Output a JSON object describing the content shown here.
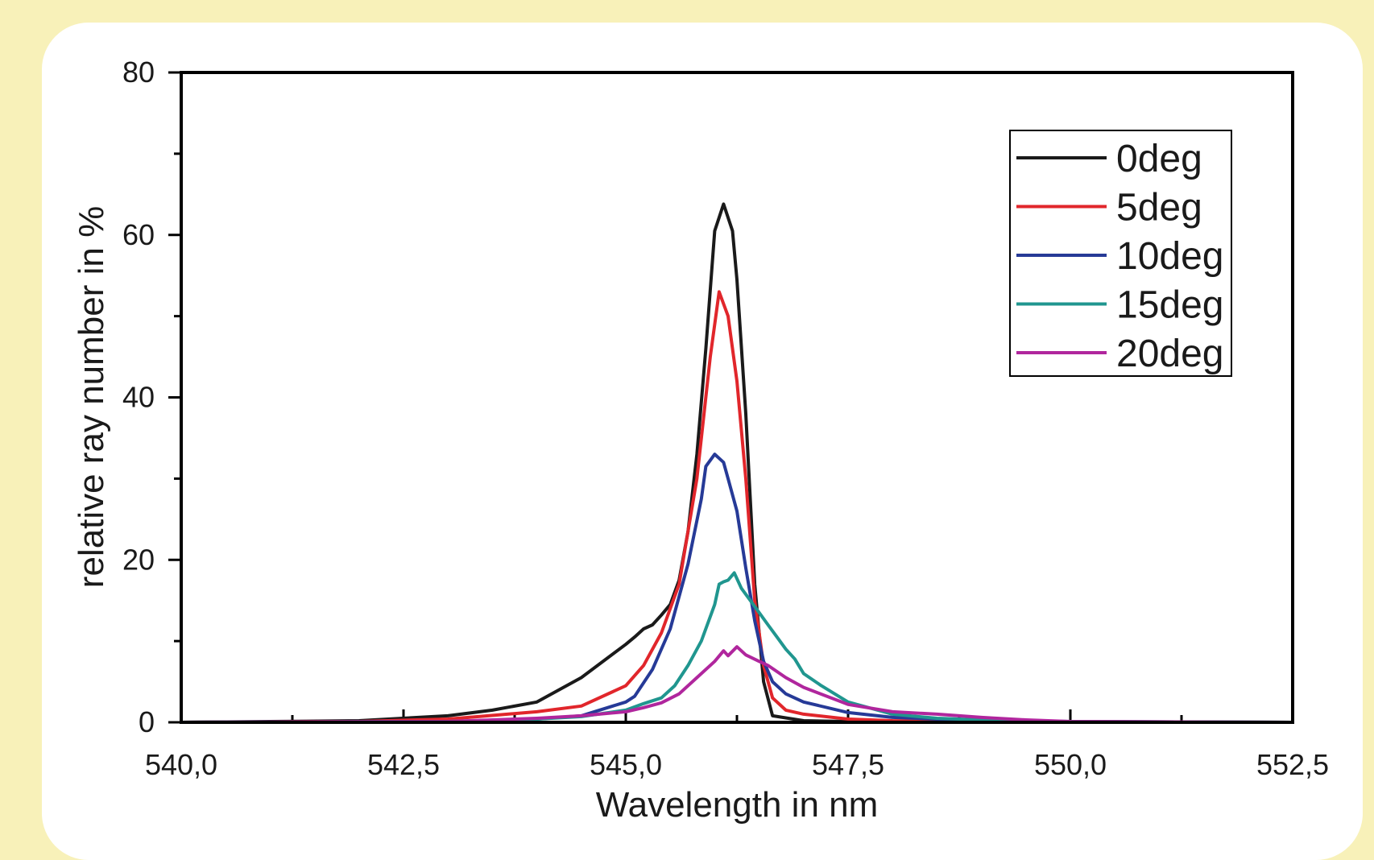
{
  "chart_data": {
    "type": "line",
    "xlabel": "Wavelength in nm",
    "ylabel": "relative ray number in %",
    "xlim": [
      540.0,
      552.5
    ],
    "ylim": [
      0,
      80
    ],
    "x_ticks": [
      540.0,
      542.5,
      545.0,
      547.5,
      550.0,
      552.5
    ],
    "x_tick_labels": [
      "540,0",
      "542,5",
      "545,0",
      "547,5",
      "550,0",
      "552,5"
    ],
    "y_ticks": [
      0,
      20,
      40,
      60,
      80
    ],
    "y_tick_labels": [
      "0",
      "20",
      "40",
      "60",
      "80"
    ],
    "legend_position": "top-right",
    "grid": false,
    "series": [
      {
        "name": "0deg",
        "color": "#1a1a1a",
        "points": [
          [
            540.0,
            0
          ],
          [
            541.0,
            0.1
          ],
          [
            542.0,
            0.2
          ],
          [
            543.0,
            0.8
          ],
          [
            543.5,
            1.5
          ],
          [
            544.0,
            2.5
          ],
          [
            544.5,
            5.5
          ],
          [
            545.0,
            9.6
          ],
          [
            545.1,
            10.5
          ],
          [
            545.2,
            11.5
          ],
          [
            545.3,
            12.0
          ],
          [
            545.4,
            13.2
          ],
          [
            545.5,
            14.5
          ],
          [
            545.6,
            17.5
          ],
          [
            545.7,
            23.5
          ],
          [
            545.8,
            33.0
          ],
          [
            545.9,
            46.0
          ],
          [
            546.0,
            60.5
          ],
          [
            546.1,
            63.8
          ],
          [
            546.2,
            60.5
          ],
          [
            546.25,
            54.5
          ],
          [
            546.35,
            38.0
          ],
          [
            546.45,
            17.0
          ],
          [
            546.55,
            5.0
          ],
          [
            546.65,
            0.8
          ],
          [
            547.0,
            0.2
          ],
          [
            547.5,
            0.1
          ],
          [
            548.0,
            0.05
          ],
          [
            549.0,
            0
          ],
          [
            550.0,
            0
          ],
          [
            552.5,
            0
          ]
        ]
      },
      {
        "name": "5deg",
        "color": "#e1262b",
        "points": [
          [
            540.0,
            0
          ],
          [
            542.0,
            0.1
          ],
          [
            543.0,
            0.4
          ],
          [
            544.0,
            1.3
          ],
          [
            544.5,
            2.0
          ],
          [
            545.0,
            4.5
          ],
          [
            545.2,
            7.0
          ],
          [
            545.4,
            11.0
          ],
          [
            545.6,
            17.0
          ],
          [
            545.8,
            30.0
          ],
          [
            545.95,
            45.0
          ],
          [
            546.05,
            53.0
          ],
          [
            546.15,
            50.0
          ],
          [
            546.25,
            42.0
          ],
          [
            546.35,
            30.0
          ],
          [
            546.45,
            15.0
          ],
          [
            546.55,
            7.0
          ],
          [
            546.65,
            3.0
          ],
          [
            546.8,
            1.5
          ],
          [
            547.0,
            1.0
          ],
          [
            547.5,
            0.4
          ],
          [
            548.0,
            0.2
          ],
          [
            549.0,
            0.1
          ],
          [
            550.0,
            0.05
          ],
          [
            552.5,
            0
          ]
        ]
      },
      {
        "name": "10deg",
        "color": "#263a97",
        "points": [
          [
            540.0,
            0
          ],
          [
            543.0,
            0.1
          ],
          [
            544.0,
            0.4
          ],
          [
            544.5,
            0.8
          ],
          [
            545.0,
            2.5
          ],
          [
            545.1,
            3.2
          ],
          [
            545.3,
            6.5
          ],
          [
            545.5,
            11.5
          ],
          [
            545.7,
            19.5
          ],
          [
            545.85,
            27.5
          ],
          [
            545.9,
            31.5
          ],
          [
            546.0,
            33.0
          ],
          [
            546.1,
            32.0
          ],
          [
            546.15,
            30.0
          ],
          [
            546.25,
            26.0
          ],
          [
            546.35,
            19.0
          ],
          [
            546.45,
            12.5
          ],
          [
            546.55,
            7.5
          ],
          [
            546.65,
            5.0
          ],
          [
            546.8,
            3.5
          ],
          [
            547.0,
            2.5
          ],
          [
            547.5,
            1.2
          ],
          [
            548.0,
            0.6
          ],
          [
            549.0,
            0.2
          ],
          [
            550.0,
            0.1
          ],
          [
            552.5,
            0
          ]
        ]
      },
      {
        "name": "15deg",
        "color": "#20968f",
        "points": [
          [
            540.0,
            0
          ],
          [
            543.0,
            0.1
          ],
          [
            544.0,
            0.4
          ],
          [
            544.5,
            0.7
          ],
          [
            545.0,
            1.5
          ],
          [
            545.2,
            2.3
          ],
          [
            545.4,
            3.0
          ],
          [
            545.55,
            4.5
          ],
          [
            545.7,
            7.0
          ],
          [
            545.85,
            10.0
          ],
          [
            546.0,
            14.5
          ],
          [
            546.05,
            17.0
          ],
          [
            546.1,
            17.3
          ],
          [
            546.15,
            17.5
          ],
          [
            546.22,
            18.4
          ],
          [
            546.3,
            16.5
          ],
          [
            546.4,
            15.0
          ],
          [
            546.5,
            13.5
          ],
          [
            546.6,
            12.0
          ],
          [
            546.7,
            10.5
          ],
          [
            546.8,
            9.0
          ],
          [
            546.9,
            7.8
          ],
          [
            547.0,
            6.0
          ],
          [
            547.2,
            4.5
          ],
          [
            547.5,
            2.5
          ],
          [
            548.0,
            1.0
          ],
          [
            548.5,
            0.5
          ],
          [
            549.0,
            0.3
          ],
          [
            550.0,
            0.1
          ],
          [
            552.5,
            0
          ]
        ]
      },
      {
        "name": "20deg",
        "color": "#b0269d",
        "points": [
          [
            540.0,
            0
          ],
          [
            543.0,
            0.1
          ],
          [
            544.0,
            0.5
          ],
          [
            544.5,
            0.8
          ],
          [
            545.0,
            1.3
          ],
          [
            545.2,
            1.8
          ],
          [
            545.4,
            2.4
          ],
          [
            545.6,
            3.5
          ],
          [
            545.8,
            5.5
          ],
          [
            546.0,
            7.5
          ],
          [
            546.1,
            8.8
          ],
          [
            546.15,
            8.2
          ],
          [
            546.25,
            9.3
          ],
          [
            546.35,
            8.3
          ],
          [
            546.5,
            7.5
          ],
          [
            546.6,
            7.0
          ],
          [
            546.8,
            5.5
          ],
          [
            547.0,
            4.3
          ],
          [
            547.5,
            2.2
          ],
          [
            548.0,
            1.3
          ],
          [
            548.5,
            1.0
          ],
          [
            549.0,
            0.6
          ],
          [
            549.5,
            0.3
          ],
          [
            550.0,
            0.1
          ],
          [
            552.5,
            0
          ]
        ]
      }
    ]
  }
}
